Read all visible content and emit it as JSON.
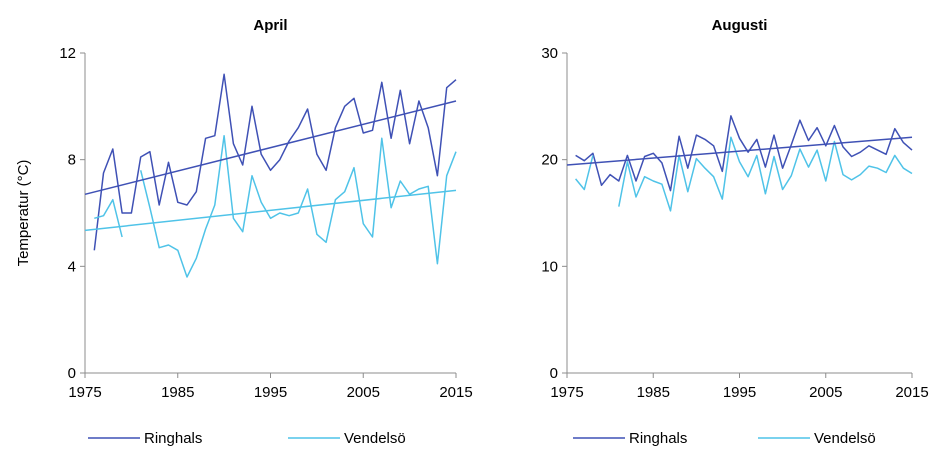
{
  "chart_data": [
    {
      "type": "line",
      "title": "April",
      "xlabel": "",
      "ylabel": "Temperatur (°C)",
      "xlim": [
        1975,
        2015
      ],
      "ylim": [
        0,
        12
      ],
      "xticks": [
        "1975",
        "1985",
        "1995",
        "2005",
        "2015"
      ],
      "yticks": [
        "0",
        "4",
        "8",
        "12"
      ],
      "grid": false,
      "legend": "bottom",
      "series": [
        {
          "name": "Ringhals",
          "color": "#3F51B5",
          "x": [
            1976,
            1977,
            1978,
            1979,
            1980,
            1981,
            1982,
            1983,
            1984,
            1985,
            1986,
            1987,
            1988,
            1989,
            1990,
            1991,
            1992,
            1993,
            1994,
            1995,
            1996,
            1997,
            1998,
            1999,
            2000,
            2001,
            2002,
            2003,
            2004,
            2005,
            2006,
            2007,
            2008,
            2009,
            2010,
            2011,
            2012,
            2013,
            2014,
            2015
          ],
          "y": [
            4.6,
            7.5,
            8.4,
            6.0,
            6.0,
            8.1,
            8.3,
            6.3,
            7.9,
            6.4,
            6.3,
            6.8,
            8.8,
            8.9,
            11.2,
            8.6,
            7.8,
            10.0,
            8.2,
            7.6,
            8.0,
            8.7,
            9.2,
            9.9,
            8.2,
            7.6,
            9.2,
            10.0,
            10.3,
            9.0,
            9.1,
            10.9,
            8.8,
            10.6,
            8.6,
            10.2,
            9.2,
            7.4,
            10.7,
            11.0
          ]
        },
        {
          "name": "Vendelsö",
          "color": "#4FC3E8",
          "x": [
            1976,
            1977,
            1978,
            1979,
            null,
            1981,
            1982,
            1983,
            1984,
            1985,
            1986,
            1987,
            1988,
            1989,
            1990,
            1991,
            1992,
            1993,
            1994,
            1995,
            1996,
            1997,
            1998,
            1999,
            2000,
            2001,
            2002,
            2003,
            2004,
            2005,
            2006,
            2007,
            2008,
            2009,
            2010,
            2011,
            2012,
            2013,
            2014,
            2015
          ],
          "y": [
            5.8,
            5.9,
            6.5,
            5.1,
            null,
            7.6,
            6.2,
            4.7,
            4.8,
            4.6,
            3.6,
            4.3,
            5.4,
            6.3,
            8.9,
            5.8,
            5.3,
            7.4,
            6.4,
            5.8,
            6.0,
            5.9,
            6.0,
            6.9,
            5.2,
            4.9,
            6.5,
            6.8,
            7.7,
            5.6,
            5.1,
            8.8,
            6.2,
            7.2,
            6.7,
            6.9,
            7.0,
            4.1,
            7.4,
            8.3
          ]
        }
      ],
      "trendlines": [
        {
          "series": "Ringhals",
          "x": [
            1975,
            2015
          ],
          "y": [
            6.7,
            10.2
          ]
        },
        {
          "series": "Vendelsö",
          "x": [
            1975,
            2015
          ],
          "y": [
            5.35,
            6.85
          ]
        }
      ]
    },
    {
      "type": "line",
      "title": "Augusti",
      "xlabel": "",
      "ylabel": "",
      "xlim": [
        1975,
        2015
      ],
      "ylim": [
        0,
        30
      ],
      "xticks": [
        "1975",
        "1985",
        "1995",
        "2005",
        "2015"
      ],
      "yticks": [
        "0",
        "10",
        "20",
        "30"
      ],
      "grid": false,
      "legend": "bottom",
      "series": [
        {
          "name": "Ringhals",
          "color": "#3F51B5",
          "x": [
            1976,
            1977,
            1978,
            1979,
            1980,
            1981,
            1982,
            1983,
            1984,
            1985,
            1986,
            1987,
            1988,
            1989,
            1990,
            1991,
            1992,
            1993,
            1994,
            1995,
            1996,
            1997,
            1998,
            1999,
            2000,
            2001,
            2002,
            2003,
            2004,
            2005,
            2006,
            2007,
            2008,
            2009,
            2010,
            2011,
            2012,
            2013,
            2014,
            2015
          ],
          "y": [
            20.4,
            19.9,
            20.6,
            17.6,
            18.6,
            18.0,
            20.4,
            18.0,
            20.3,
            20.6,
            19.7,
            17.1,
            22.2,
            19.2,
            22.3,
            21.9,
            21.3,
            18.9,
            24.1,
            22.0,
            20.7,
            21.9,
            19.3,
            22.3,
            19.2,
            21.4,
            23.7,
            21.8,
            23.0,
            21.3,
            23.2,
            21.2,
            20.3,
            20.7,
            21.3,
            20.9,
            20.5,
            22.9,
            21.6,
            20.9
          ]
        },
        {
          "name": "Vendelsö",
          "color": "#4FC3E8",
          "x": [
            1976,
            1977,
            1978,
            null,
            null,
            1981,
            1982,
            1983,
            1984,
            1985,
            1986,
            1987,
            1988,
            1989,
            1990,
            1991,
            1992,
            1993,
            1994,
            1995,
            1996,
            1997,
            1998,
            1999,
            2000,
            2001,
            2002,
            2003,
            2004,
            2005,
            2006,
            2007,
            2008,
            2009,
            2010,
            2011,
            2012,
            2013,
            2014,
            2015
          ],
          "y": [
            18.2,
            17.2,
            20.4,
            null,
            null,
            15.6,
            19.8,
            16.5,
            18.4,
            18.0,
            17.7,
            15.2,
            20.4,
            17.0,
            20.1,
            19.2,
            18.4,
            16.3,
            22.1,
            19.8,
            18.4,
            20.4,
            16.8,
            20.3,
            17.2,
            18.5,
            21.0,
            19.3,
            20.9,
            18.0,
            21.7,
            18.6,
            18.1,
            18.6,
            19.4,
            19.2,
            18.8,
            20.4,
            19.2,
            18.7
          ]
        }
      ],
      "trendlines": [
        {
          "series": "Ringhals",
          "x": [
            1975,
            2015
          ],
          "y": [
            19.5,
            22.1
          ]
        }
      ]
    }
  ],
  "legend_labels": [
    "Ringhals",
    "Vendelsö"
  ]
}
